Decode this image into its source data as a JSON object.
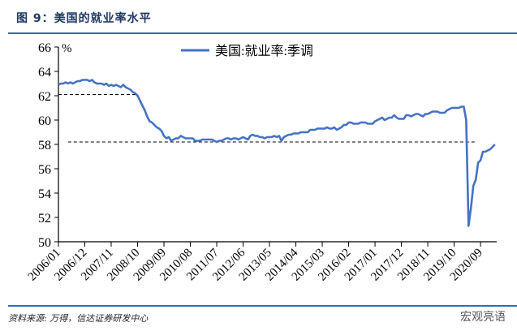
{
  "header": {
    "title": "图 9：美国的就业率水平"
  },
  "footer": {
    "source": "资料来源: 万得，信达证券研发中心",
    "watermark": "宏观亮语"
  },
  "colors": {
    "series": "#4472c4",
    "rule": "#2e6db4",
    "title": "#1f3864",
    "reference": "#000000"
  },
  "chart_data": {
    "type": "line",
    "title": "",
    "ylabel": "%",
    "ylim": [
      50,
      66
    ],
    "yticks": [
      50,
      52,
      54,
      56,
      58,
      60,
      62,
      64,
      66
    ],
    "xstart": "2006/01",
    "xend": "2021/03",
    "xticks": [
      "2006/01",
      "2006/12",
      "2007/11",
      "2008/10",
      "2009/09",
      "2010/08",
      "2011/07",
      "2012/06",
      "2013/05",
      "2014/04",
      "2015/03",
      "2016/02",
      "2017/01",
      "2017/12",
      "2018/11",
      "2019/10",
      "2020/09"
    ],
    "grid": false,
    "legend": "top-center",
    "series": [
      {
        "name": "美国:就业率:季调",
        "frequency": "monthly",
        "values": [
          62.9,
          63.0,
          63.0,
          63.1,
          63.0,
          63.1,
          63.0,
          63.1,
          63.2,
          63.2,
          63.3,
          63.3,
          63.3,
          63.2,
          63.3,
          63.1,
          63.0,
          63.0,
          63.0,
          62.9,
          63.0,
          62.8,
          62.9,
          62.8,
          62.9,
          62.8,
          62.7,
          62.9,
          62.7,
          62.6,
          62.5,
          62.3,
          62.2,
          62.0,
          61.6,
          61.2,
          60.8,
          60.3,
          59.9,
          59.8,
          59.6,
          59.4,
          59.3,
          59.1,
          58.7,
          58.5,
          58.6,
          58.3,
          58.4,
          58.5,
          58.5,
          58.7,
          58.6,
          58.5,
          58.5,
          58.5,
          58.5,
          58.3,
          58.3,
          58.3,
          58.4,
          58.4,
          58.4,
          58.4,
          58.4,
          58.3,
          58.2,
          58.3,
          58.3,
          58.4,
          58.5,
          58.5,
          58.4,
          58.5,
          58.5,
          58.4,
          58.5,
          58.6,
          58.5,
          58.4,
          58.7,
          58.8,
          58.7,
          58.7,
          58.6,
          58.6,
          58.5,
          58.6,
          58.6,
          58.6,
          58.7,
          58.6,
          58.7,
          58.3,
          58.6,
          58.7,
          58.8,
          58.8,
          58.9,
          58.9,
          58.9,
          59.0,
          59.0,
          59.0,
          59.0,
          59.2,
          59.2,
          59.2,
          59.3,
          59.3,
          59.3,
          59.3,
          59.4,
          59.3,
          59.3,
          59.4,
          59.2,
          59.3,
          59.4,
          59.6,
          59.6,
          59.8,
          59.8,
          59.7,
          59.7,
          59.7,
          59.8,
          59.8,
          59.8,
          59.7,
          59.7,
          59.7,
          59.9,
          60.0,
          60.1,
          60.2,
          60.0,
          60.1,
          60.2,
          60.2,
          60.4,
          60.2,
          60.1,
          60.1,
          60.1,
          60.4,
          60.4,
          60.3,
          60.4,
          60.5,
          60.5,
          60.4,
          60.3,
          60.5,
          60.5,
          60.6,
          60.7,
          60.7,
          60.7,
          60.6,
          60.6,
          60.6,
          60.8,
          60.9,
          61.0,
          61.0,
          61.0,
          61.0,
          61.1,
          61.1,
          60.0,
          51.3,
          52.8,
          54.6,
          55.1,
          56.5,
          56.7,
          57.4,
          57.4,
          57.5,
          57.6,
          57.8,
          58.0
        ]
      }
    ],
    "reference_lines": [
      {
        "value": 62.1,
        "from": "2006/01",
        "to": "2008/09",
        "style": "dashed"
      },
      {
        "value": 58.2,
        "from": "2006/05",
        "to": "2020/07",
        "style": "dashed"
      }
    ]
  }
}
